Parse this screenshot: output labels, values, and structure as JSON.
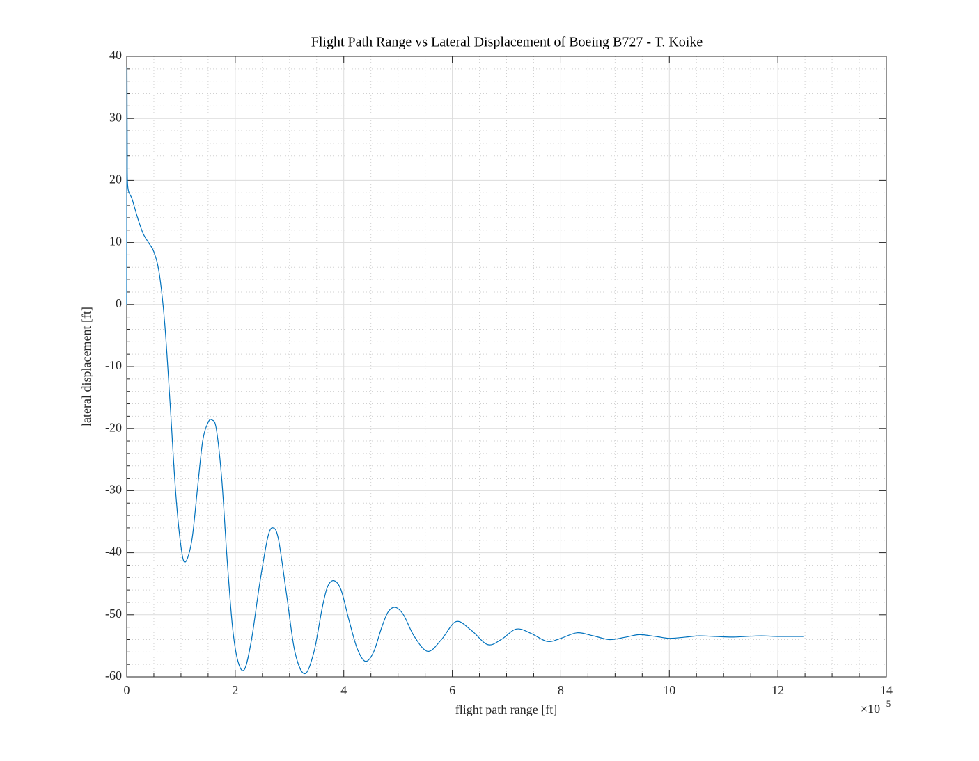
{
  "chart_data": {
    "type": "line",
    "title": "Flight Path Range vs Lateral Displacement of Boeing B727 - T. Koike",
    "xlabel": "flight path range [ft]",
    "ylabel": "lateral displacement [ft]",
    "x_multiplier": "×10",
    "x_multiplier_exponent": "5",
    "xlim": [
      0,
      14
    ],
    "ylim": [
      -60,
      40
    ],
    "xticks": [
      0,
      2,
      4,
      6,
      8,
      10,
      12,
      14
    ],
    "yticks": [
      -60,
      -50,
      -40,
      -30,
      -20,
      -10,
      0,
      10,
      20,
      30,
      40
    ],
    "xminorticks": [
      0.5,
      1,
      1.5,
      2.5,
      3,
      3.5,
      4.5,
      5,
      5.5,
      6.5,
      7,
      7.5,
      8.5,
      9,
      9.5,
      10.5,
      11,
      11.5,
      12.5,
      13,
      13.5
    ],
    "yminorticks": [
      -58,
      -56,
      -54,
      -52,
      -48,
      -46,
      -44,
      -42,
      -38,
      -36,
      -34,
      -32,
      -28,
      -26,
      -24,
      -22,
      -18,
      -16,
      -14,
      -12,
      -8,
      -6,
      -4,
      -2,
      2,
      4,
      6,
      8,
      12,
      14,
      16,
      18,
      22,
      24,
      26,
      28,
      32,
      34,
      36,
      38
    ],
    "grid": true,
    "minor_grid": true,
    "x": [
      0,
      0.005,
      0.01,
      0.02,
      0.1,
      0.2,
      0.3,
      0.4,
      0.5,
      0.6,
      0.7,
      0.8,
      0.9,
      1.0,
      1.08,
      1.2,
      1.3,
      1.4,
      1.5,
      1.57,
      1.65,
      1.75,
      1.85,
      1.95,
      2.05,
      2.17,
      2.3,
      2.45,
      2.6,
      2.7,
      2.8,
      2.95,
      3.1,
      3.28,
      3.45,
      3.6,
      3.7,
      3.82,
      3.95,
      4.1,
      4.25,
      4.4,
      4.55,
      4.7,
      4.82,
      4.95,
      5.1,
      5.3,
      5.55,
      5.8,
      6.07,
      6.35,
      6.65,
      6.9,
      7.18,
      7.45,
      7.75,
      8.0,
      8.3,
      8.6,
      8.9,
      9.2,
      9.45,
      9.75,
      10.0,
      10.3,
      10.55,
      10.85,
      11.15,
      11.4,
      11.7,
      12.0,
      12.47
    ],
    "series": [
      {
        "color": "#0072bd",
        "values": [
          0,
          37.5,
          25,
          19,
          17,
          14,
          11.5,
          10,
          8.5,
          5,
          -3,
          -16,
          -30,
          -39,
          -41.5,
          -38,
          -30,
          -22,
          -19,
          -18.6,
          -20,
          -28,
          -41,
          -52,
          -57.5,
          -58.8,
          -54,
          -45,
          -37.5,
          -36,
          -38,
          -47,
          -56,
          -59.5,
          -56,
          -49,
          -45.5,
          -44.5,
          -46,
          -51,
          -55.5,
          -57.5,
          -56,
          -52,
          -49.5,
          -48.8,
          -50,
          -53.5,
          -55.9,
          -54,
          -51.1,
          -52.5,
          -54.8,
          -54,
          -52.3,
          -53,
          -54.3,
          -53.8,
          -52.9,
          -53.4,
          -54,
          -53.6,
          -53.2,
          -53.5,
          -53.8,
          -53.6,
          -53.4,
          -53.5,
          -53.6,
          -53.5,
          -53.4,
          -53.5,
          -53.5
        ]
      }
    ]
  }
}
